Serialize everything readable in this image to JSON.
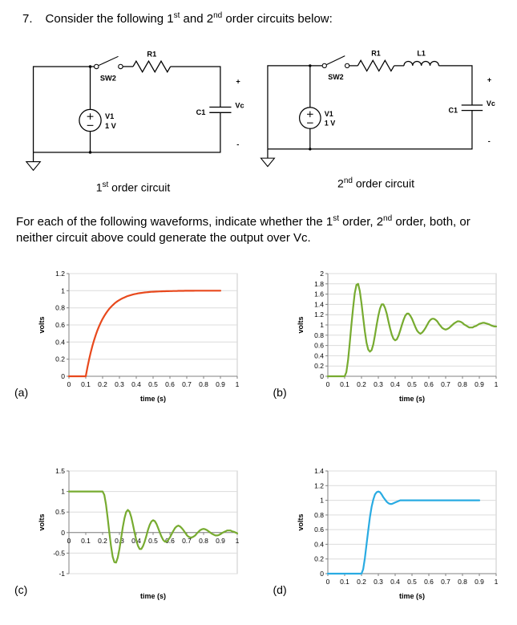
{
  "page": {
    "question_number": "7.",
    "title": {
      "pre": "Consider the following 1",
      "sup1": "st",
      "mid": " and 2",
      "sup2": "nd",
      "post": " order circuits below:"
    },
    "instruction": {
      "pre": "For each of the following waveforms, indicate whether the 1",
      "sup1": "st",
      "mid": " order, 2",
      "sup2": "nd",
      "post": " order, both, or neither circuit above could generate the output over Vc."
    }
  },
  "circuit1": {
    "caption": {
      "num": "1",
      "sup": "st",
      "rest": " order circuit"
    },
    "labels": {
      "switch": "SW2",
      "resistor": "R1",
      "source_name": "V1",
      "source_value": "1 V",
      "capacitor": "C1",
      "output": "Vc",
      "plus": "+",
      "minus": "-"
    }
  },
  "circuit2": {
    "caption": {
      "num": "2",
      "sup": "nd",
      "rest": " order circuit"
    },
    "labels": {
      "switch": "SW2",
      "resistor": "R1",
      "inductor": "L1",
      "source_name": "V1",
      "source_value": "1 V",
      "capacitor": "C1",
      "output": "Vc",
      "plus": "+",
      "minus": "-"
    }
  },
  "chart_data": [
    {
      "id": "a",
      "label": "(a)",
      "type": "line",
      "color": "#e8491d",
      "title": "",
      "xlabel": "time (s)",
      "ylabel": "volts",
      "xlim": [
        0,
        1
      ],
      "ylim": [
        0,
        1.2
      ],
      "xticks": [
        0,
        0.1,
        0.2,
        0.3,
        0.4,
        0.5,
        0.6,
        0.7,
        0.8,
        0.9,
        1
      ],
      "xtick_labels": [
        "0",
        "0.1",
        "0.2",
        "0.3",
        "0.4",
        "0.5",
        "0.6",
        "0.7",
        "0.8",
        "0.9",
        "1"
      ],
      "yticks": [
        0,
        0.2,
        0.4,
        0.6,
        0.8,
        1,
        1.2
      ],
      "ytick_labels": [
        "0",
        "0.2",
        "0.4",
        "0.6",
        "0.8",
        "1",
        "1.2"
      ],
      "grid": true,
      "legend": false,
      "x_start": 0,
      "x_step": 0.01,
      "values": [
        0,
        0,
        0,
        0,
        0,
        0,
        0,
        0,
        0,
        0,
        0,
        0.105,
        0.199,
        0.283,
        0.359,
        0.426,
        0.487,
        0.541,
        0.589,
        0.632,
        0.671,
        0.705,
        0.736,
        0.764,
        0.789,
        0.811,
        0.831,
        0.849,
        0.865,
        0.879,
        0.892,
        0.903,
        0.913,
        0.922,
        0.93,
        0.938,
        0.944,
        0.95,
        0.955,
        0.96,
        0.964,
        0.968,
        0.971,
        0.974,
        0.977,
        0.98,
        0.982,
        0.983,
        0.985,
        0.987,
        0.988,
        0.989,
        0.99,
        0.991,
        0.992,
        0.993,
        0.994,
        0.994,
        0.995,
        0.995,
        0.996,
        0.996,
        0.997,
        0.997,
        0.997,
        0.998,
        0.998,
        0.998,
        0.998,
        0.999,
        0.999,
        0.999,
        0.999,
        0.999,
        0.999,
        1,
        1,
        1,
        1,
        1,
        1,
        1,
        1,
        1,
        1,
        1,
        1,
        1,
        1,
        1,
        1
      ]
    },
    {
      "id": "b",
      "label": "(b)",
      "type": "line",
      "color": "#77ab30",
      "title": "",
      "xlabel": "time (s)",
      "ylabel": "volts",
      "xlim": [
        0,
        1
      ],
      "ylim": [
        0,
        2
      ],
      "xticks": [
        0,
        0.1,
        0.2,
        0.3,
        0.4,
        0.5,
        0.6,
        0.7,
        0.8,
        0.9,
        1
      ],
      "xtick_labels": [
        "0",
        "0.1",
        "0.2",
        "0.3",
        "0.4",
        "0.5",
        "0.6",
        "0.7",
        "0.8",
        "0.9",
        "1"
      ],
      "yticks": [
        0,
        0.2,
        0.4,
        0.6,
        0.8,
        1,
        1.2,
        1.4,
        1.6,
        1.8,
        2
      ],
      "ytick_labels": [
        "0",
        "0.2",
        "0.4",
        "0.6",
        "0.8",
        "1",
        "1.2",
        "1.4",
        "1.6",
        "1.8",
        "2"
      ],
      "grid": true,
      "legend": false,
      "x_start": 0,
      "x_step": 0.01,
      "values": [
        0,
        0,
        0,
        0,
        0,
        0,
        0,
        0,
        0,
        0,
        0,
        0.08,
        0.31,
        0.64,
        1.0,
        1.33,
        1.62,
        1.78,
        1.8,
        1.66,
        1.42,
        1.14,
        0.87,
        0.65,
        0.52,
        0.48,
        0.51,
        0.62,
        0.8,
        1.0,
        1.18,
        1.32,
        1.4,
        1.4,
        1.33,
        1.22,
        1.07,
        0.93,
        0.81,
        0.73,
        0.7,
        0.72,
        0.79,
        0.89,
        1.0,
        1.1,
        1.18,
        1.22,
        1.22,
        1.18,
        1.12,
        1.04,
        0.96,
        0.89,
        0.85,
        0.83,
        0.85,
        0.89,
        0.94,
        1.0,
        1.06,
        1.1,
        1.12,
        1.12,
        1.1,
        1.07,
        1.02,
        0.98,
        0.94,
        0.92,
        0.91,
        0.92,
        0.94,
        0.97,
        1.0,
        1.03,
        1.05,
        1.07,
        1.07,
        1.06,
        1.04,
        1.01,
        0.99,
        0.97,
        0.95,
        0.95,
        0.95,
        0.97,
        0.98,
        1.0,
        1.02,
        1.03,
        1.04,
        1.04,
        1.03,
        1.02,
        1.01,
        0.99,
        0.98,
        0.97,
        0.97
      ]
    },
    {
      "id": "c",
      "label": "(c)",
      "type": "line",
      "color": "#77ab30",
      "title": "",
      "xlabel": "time (s)",
      "ylabel": "volts",
      "xlim": [
        0,
        1
      ],
      "ylim": [
        -1,
        1.5
      ],
      "xticks": [
        0,
        0.1,
        0.2,
        0.3,
        0.4,
        0.5,
        0.6,
        0.7,
        0.8,
        0.9,
        1
      ],
      "xtick_labels": [
        "0",
        "0.1",
        "0.2",
        "0.3",
        "0.4",
        "0.5",
        "0.6",
        "0.7",
        "0.8",
        "0.9",
        "1"
      ],
      "yticks": [
        -1,
        -0.5,
        0,
        0.5,
        1,
        1.5
      ],
      "ytick_labels": [
        "-1",
        "-0.5",
        "0",
        "0.5",
        "1",
        "1.5"
      ],
      "grid": true,
      "legend": false,
      "x_start": 0,
      "x_step": 0.01,
      "values": [
        1,
        1,
        1,
        1,
        1,
        1,
        1,
        1,
        1,
        1,
        1,
        1,
        1,
        1,
        1,
        1,
        1,
        1,
        1,
        1,
        1.0,
        0.92,
        0.69,
        0.36,
        0.0,
        -0.33,
        -0.59,
        -0.72,
        -0.73,
        -0.61,
        -0.4,
        -0.14,
        0.13,
        0.35,
        0.5,
        0.55,
        0.51,
        0.38,
        0.2,
        0.0,
        -0.18,
        -0.32,
        -0.4,
        -0.4,
        -0.33,
        -0.22,
        -0.08,
        0.07,
        0.19,
        0.27,
        0.3,
        0.28,
        0.21,
        0.11,
        0.0,
        -0.1,
        -0.18,
        -0.22,
        -0.22,
        -0.18,
        -0.12,
        -0.04,
        0.04,
        0.11,
        0.15,
        0.17,
        0.15,
        0.11,
        0.06,
        0.0,
        -0.06,
        -0.1,
        -0.12,
        -0.12,
        -0.1,
        -0.07,
        -0.02,
        0.02,
        0.06,
        0.08,
        0.09,
        0.08,
        0.06,
        0.03,
        0.0,
        -0.03,
        -0.05,
        -0.07,
        -0.07,
        -0.06,
        -0.04,
        -0.01,
        0.01,
        0.03,
        0.05,
        0.05,
        0.05,
        0.03,
        0.02,
        0.0,
        -0.02
      ]
    },
    {
      "id": "d",
      "label": "(d)",
      "type": "line",
      "color": "#29abe2",
      "title": "",
      "xlabel": "time (s)",
      "ylabel": "volts",
      "xlim": [
        0,
        1
      ],
      "ylim": [
        0,
        1.4
      ],
      "xticks": [
        0,
        0.1,
        0.2,
        0.3,
        0.4,
        0.5,
        0.6,
        0.7,
        0.8,
        0.9,
        1
      ],
      "xtick_labels": [
        "0",
        "0.1",
        "0.2",
        "0.3",
        "0.4",
        "0.5",
        "0.6",
        "0.7",
        "0.8",
        "0.9",
        "1"
      ],
      "yticks": [
        0,
        0.2,
        0.4,
        0.6,
        0.8,
        1,
        1.2,
        1.4
      ],
      "ytick_labels": [
        "0",
        "0.2",
        "0.4",
        "0.6",
        "0.8",
        "1",
        "1.2",
        "1.4"
      ],
      "grid": true,
      "legend": false,
      "x_start": 0,
      "x_step": 0.01,
      "values": [
        0,
        0,
        0,
        0,
        0,
        0,
        0,
        0,
        0,
        0,
        0,
        0,
        0,
        0,
        0,
        0,
        0,
        0,
        0,
        0,
        0,
        0.06,
        0.21,
        0.4,
        0.59,
        0.77,
        0.91,
        1.01,
        1.08,
        1.11,
        1.12,
        1.11,
        1.08,
        1.04,
        1.01,
        0.98,
        0.96,
        0.95,
        0.95,
        0.96,
        0.97,
        0.98,
        0.99,
        1.0,
        1.0,
        1.0,
        1.0,
        1.0,
        1.0,
        1.0,
        1,
        1,
        1,
        1,
        1,
        1,
        1,
        1,
        1,
        1,
        1,
        1,
        1,
        1,
        1,
        1,
        1,
        1,
        1,
        1,
        1,
        1,
        1,
        1,
        1,
        1,
        1,
        1,
        1,
        1,
        1,
        1,
        1,
        1,
        1,
        1,
        1,
        1,
        1,
        1,
        1
      ]
    }
  ]
}
